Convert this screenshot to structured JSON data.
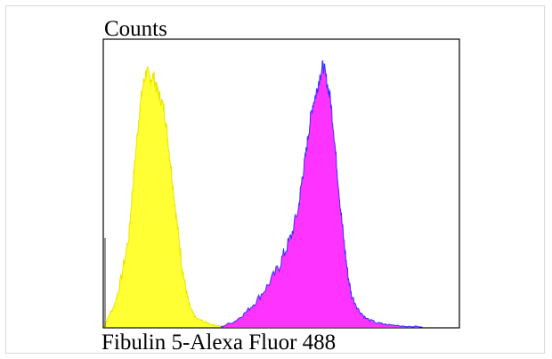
{
  "chart_data": {
    "type": "area",
    "title": "",
    "ylabel": "Counts",
    "xlabel": "Fibulin 5-Alexa Fluor 488",
    "xlim": [
      0,
      1
    ],
    "ylim": [
      0,
      1
    ],
    "grid": false,
    "legend": "none",
    "series": [
      {
        "color_fill": "#ffff33",
        "color_line": "#e6e600",
        "x": [
          0.0,
          0.01,
          0.03,
          0.05,
          0.07,
          0.08,
          0.09,
          0.1,
          0.11,
          0.12,
          0.13,
          0.14,
          0.15,
          0.16,
          0.17,
          0.18,
          0.19,
          0.2,
          0.21,
          0.22,
          0.23,
          0.24,
          0.25,
          0.26,
          0.28,
          0.3,
          0.32,
          0.35
        ],
        "y": [
          0.0,
          0.03,
          0.08,
          0.18,
          0.32,
          0.48,
          0.62,
          0.76,
          0.85,
          0.9,
          0.87,
          0.88,
          0.83,
          0.8,
          0.76,
          0.66,
          0.55,
          0.43,
          0.32,
          0.22,
          0.14,
          0.08,
          0.05,
          0.03,
          0.02,
          0.01,
          0.005,
          0.0
        ]
      },
      {
        "color_fill": "#ff33ff",
        "color_line": "#3333ff",
        "x": [
          0.33,
          0.37,
          0.4,
          0.43,
          0.46,
          0.49,
          0.51,
          0.53,
          0.55,
          0.56,
          0.57,
          0.58,
          0.59,
          0.6,
          0.61,
          0.62,
          0.63,
          0.64,
          0.65,
          0.66,
          0.67,
          0.68,
          0.69,
          0.7,
          0.72,
          0.74,
          0.77,
          0.8,
          0.85,
          0.9
        ],
        "y": [
          0.0,
          0.02,
          0.05,
          0.09,
          0.14,
          0.2,
          0.26,
          0.32,
          0.42,
          0.52,
          0.6,
          0.7,
          0.78,
          0.82,
          0.88,
          0.92,
          0.86,
          0.8,
          0.68,
          0.54,
          0.4,
          0.28,
          0.18,
          0.11,
          0.06,
          0.03,
          0.015,
          0.008,
          0.003,
          0.0
        ]
      }
    ]
  }
}
